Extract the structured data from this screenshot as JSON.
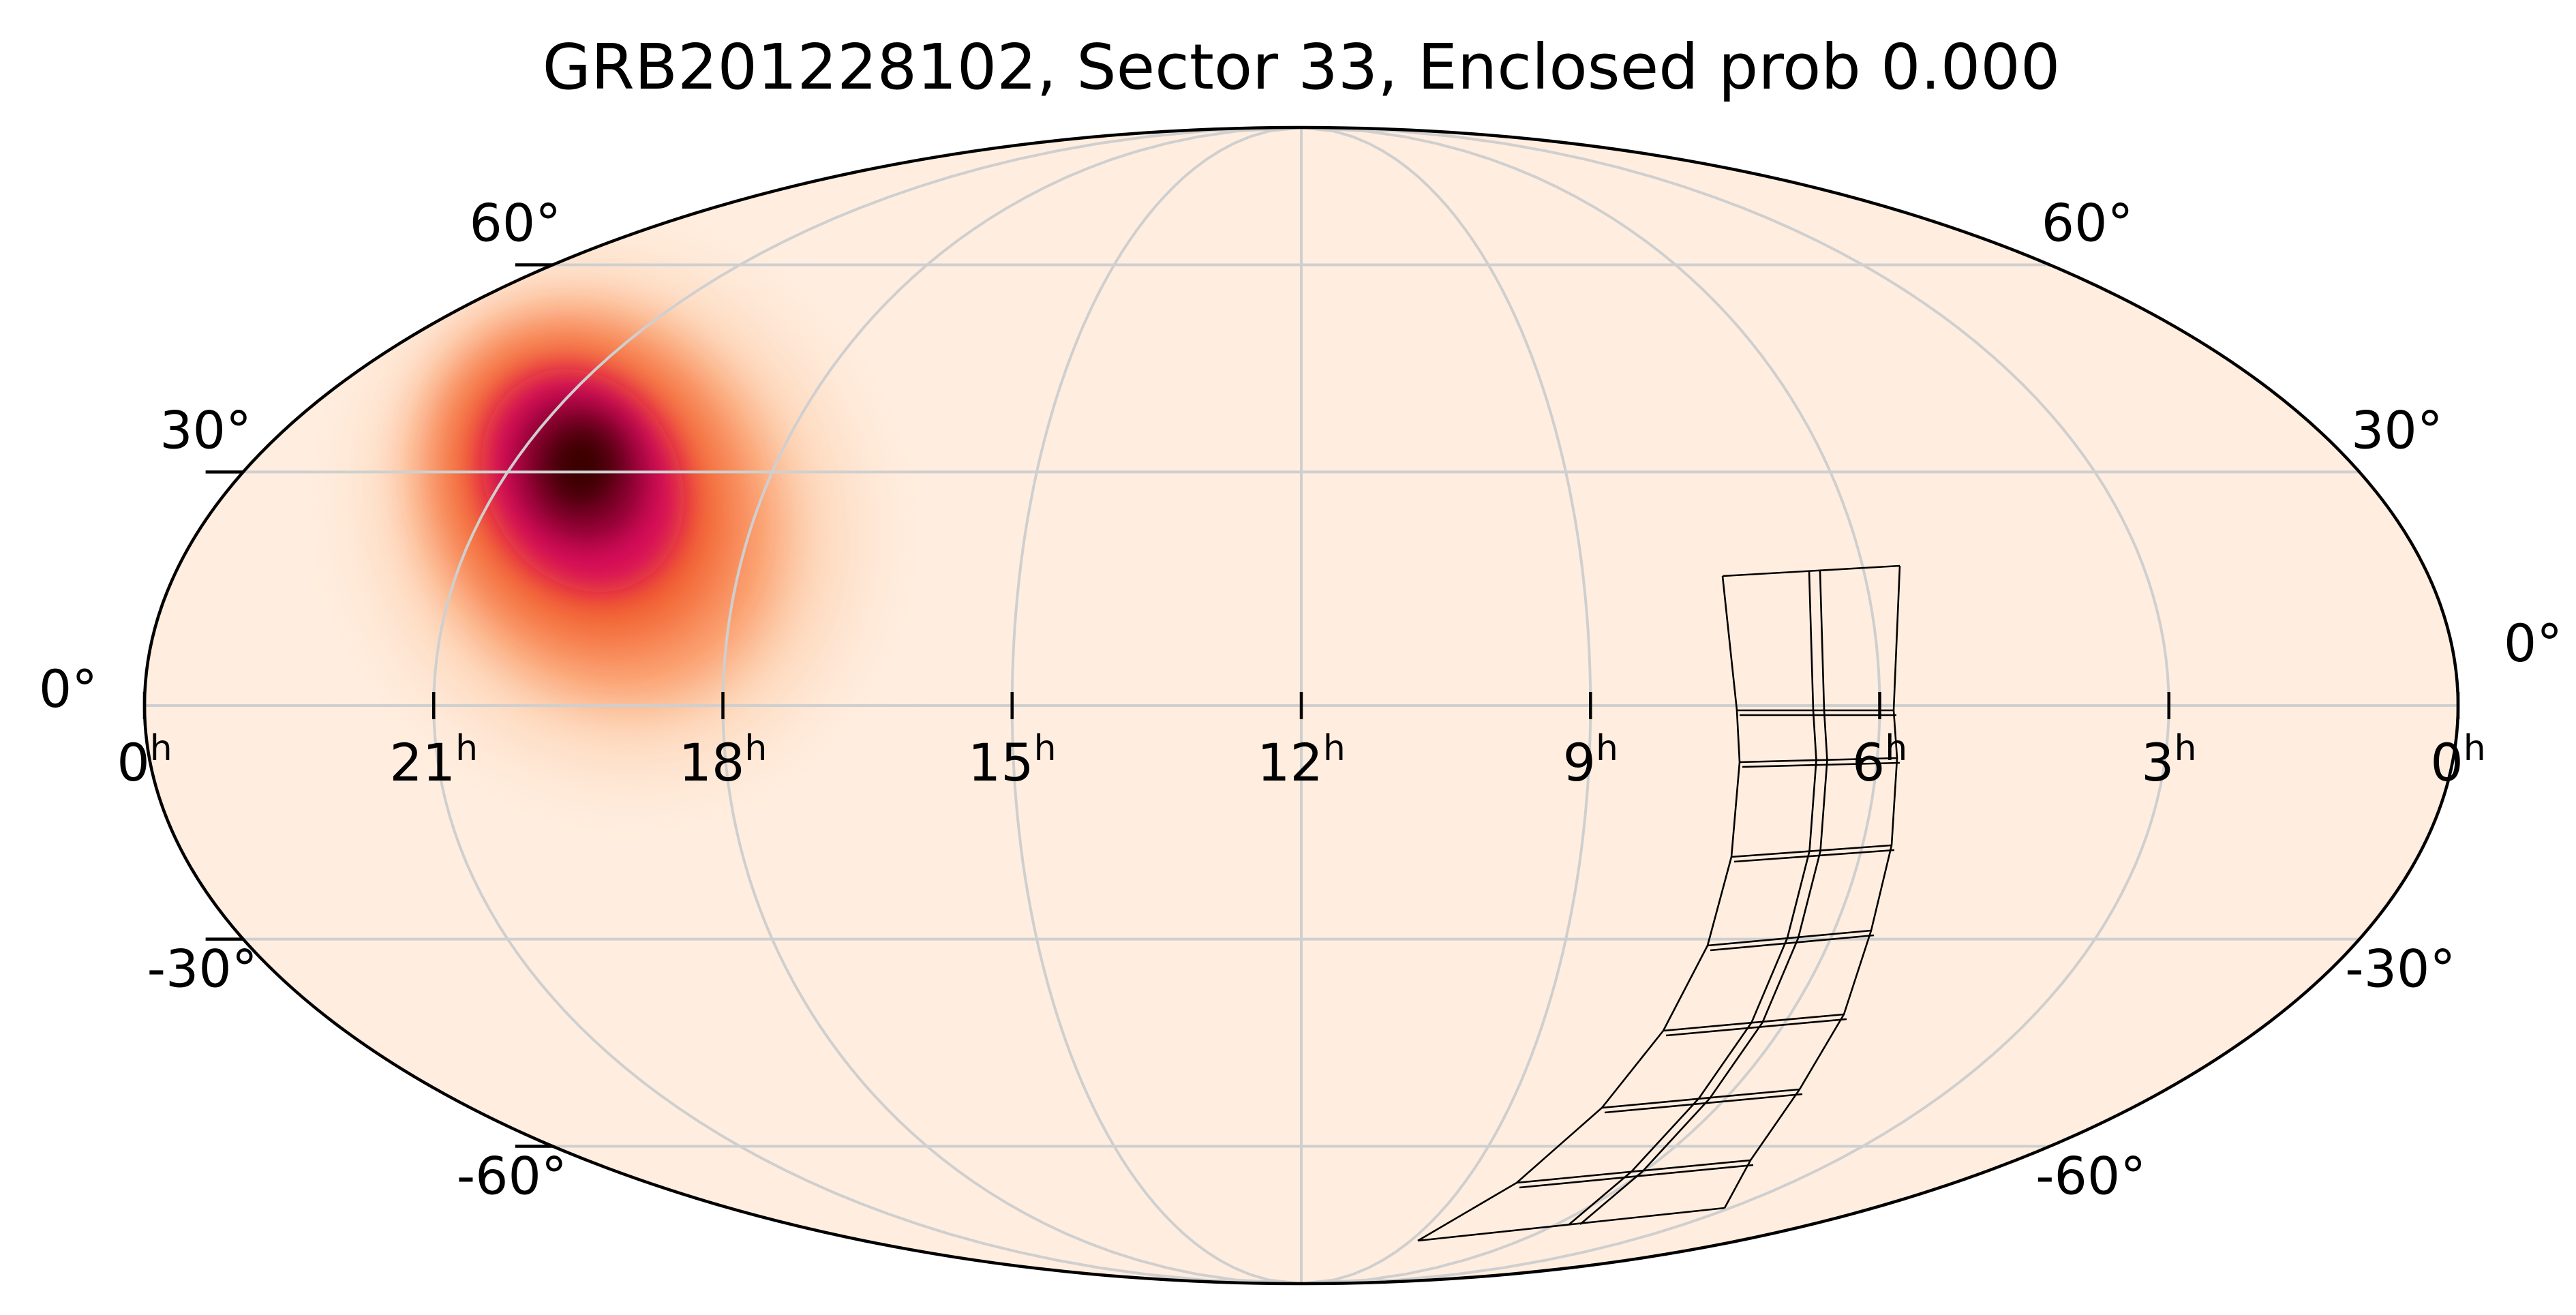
{
  "title": "GRB201228102, Sector 33, Enclosed prob 0.000",
  "projection": "mollweide",
  "colors": {
    "background": "#ffeee0",
    "peak": "#3a0000",
    "colormap": [
      "#ffeee0",
      "#fdd1b0",
      "#fb9a68",
      "#f05a2a",
      "#d8105a",
      "#8c0032",
      "#3a0000"
    ]
  },
  "axes": {
    "ra_ticks": [
      {
        "ra": 0,
        "label": "0",
        "unit": "h"
      },
      {
        "ra": 315,
        "label": "21",
        "unit": "h"
      },
      {
        "ra": 270,
        "label": "18",
        "unit": "h"
      },
      {
        "ra": 225,
        "label": "15",
        "unit": "h"
      },
      {
        "ra": 180,
        "label": "12",
        "unit": "h"
      },
      {
        "ra": 135,
        "label": "9",
        "unit": "h"
      },
      {
        "ra": 90,
        "label": "6",
        "unit": "h"
      },
      {
        "ra": 45,
        "label": "3",
        "unit": "h"
      },
      {
        "ra": 360,
        "label": "0",
        "unit": "h"
      }
    ],
    "dec_ticks": [
      {
        "dec": 60,
        "label": "60°"
      },
      {
        "dec": 30,
        "label": "30°"
      },
      {
        "dec": 0,
        "label": "0°"
      },
      {
        "dec": -30,
        "label": "-30°"
      },
      {
        "dec": -60,
        "label": "-60°"
      }
    ],
    "grid": true
  },
  "probability": {
    "peak_ra_deg": 292,
    "peak_dec_deg": 27
  }
}
